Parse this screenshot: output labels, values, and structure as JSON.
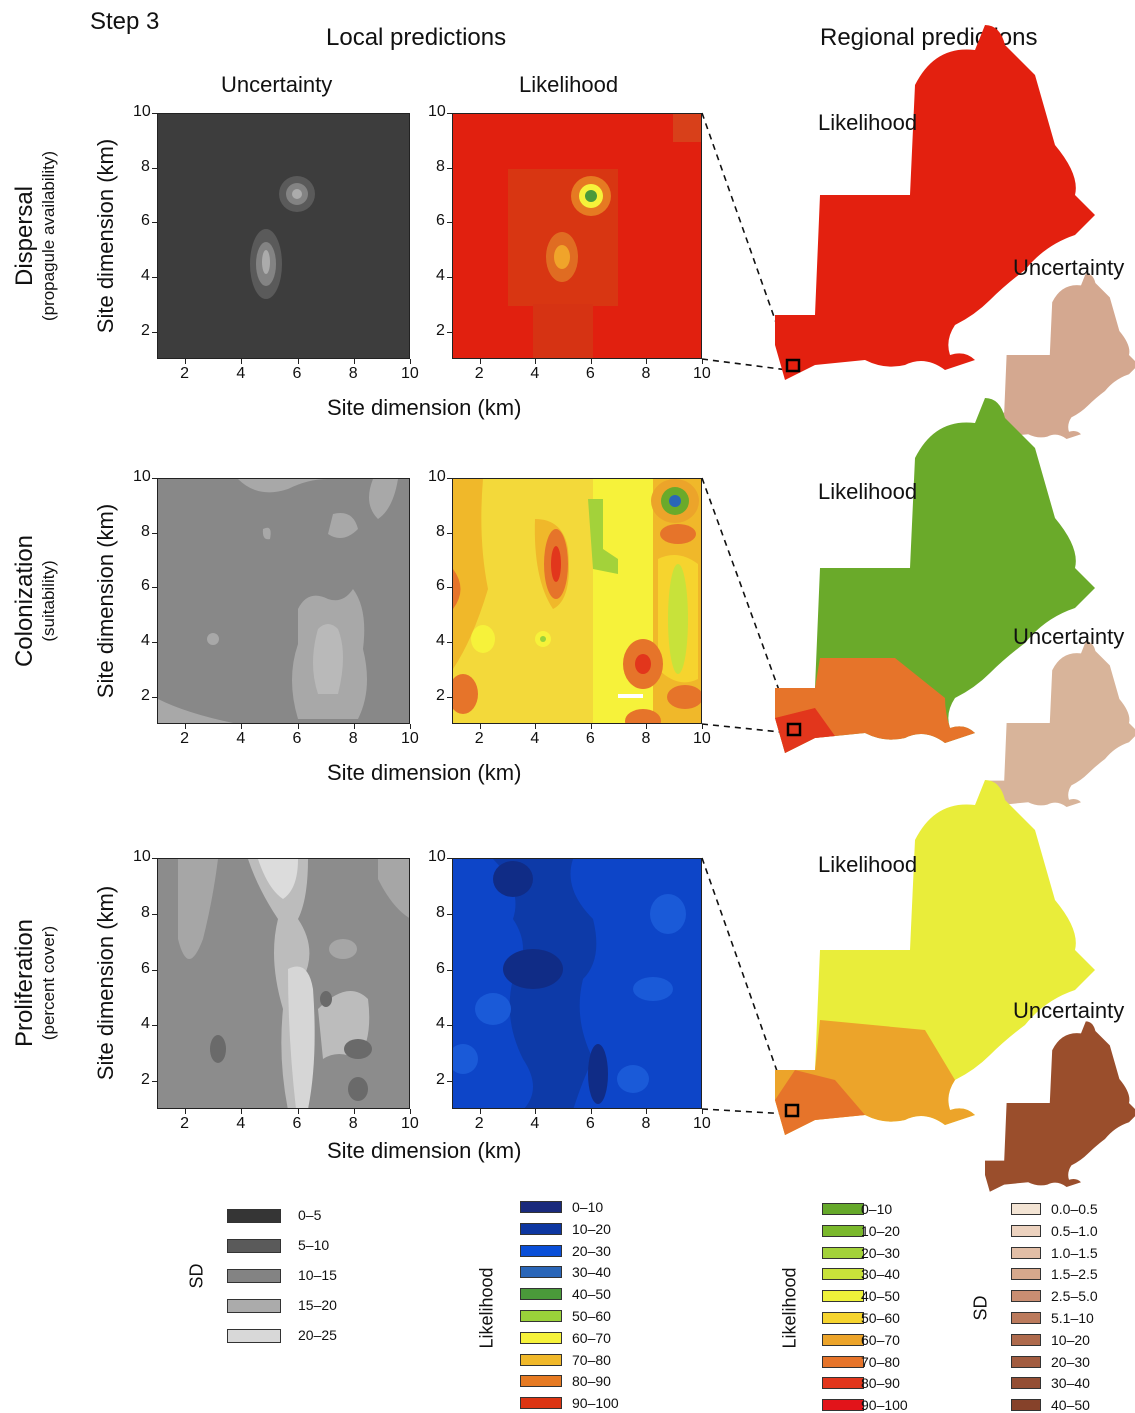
{
  "step": "Step 3",
  "headers": {
    "local": "Local predictions",
    "regional": "Regional predictions"
  },
  "columns": {
    "uncertainty": "Uncertainty",
    "likelihood": "Likelihood"
  },
  "rows": [
    {
      "name": "Dispersal",
      "sub": "(propagule availability)",
      "local_likelihood_color": "#e0200f",
      "map_likelihood_color": "#e3200f",
      "map_uncertainty_color": "#d4a890"
    },
    {
      "name": "Colonization",
      "sub": "(suitability)",
      "local_likelihood_color": "#f7e33a",
      "map_likelihood_color": "#6aaa2a",
      "map_uncertainty_color": "#d8b49a"
    },
    {
      "name": "Proliferation",
      "sub": "(percent cover)",
      "local_likelihood_color": "#1047c8",
      "map_likelihood_color": "#e9ed3a",
      "map_uncertainty_color": "#9a4e2c"
    }
  ],
  "axis": {
    "ylabel": "Site dimension (km)",
    "xlabel": "Site dimension (km)",
    "ticks": [
      "2",
      "4",
      "6",
      "8",
      "10"
    ],
    "yticks": [
      "2",
      "4",
      "6",
      "8",
      "10"
    ]
  },
  "map_labels": {
    "likelihood": "Likelihood",
    "uncertainty": "Uncertainty"
  },
  "legends": {
    "sd_local": {
      "title": "SD",
      "items": [
        {
          "label": "0–5",
          "color": "#353535"
        },
        {
          "label": "5–10",
          "color": "#5a5a5a"
        },
        {
          "label": "10–15",
          "color": "#838383"
        },
        {
          "label": "15–20",
          "color": "#ababab"
        },
        {
          "label": "20–25",
          "color": "#d8d8d8"
        }
      ]
    },
    "likelihood_local": {
      "title": "Likelihood",
      "items": [
        {
          "label": "0–10",
          "color": "#1a2a7c"
        },
        {
          "label": "10–20",
          "color": "#0d36a0"
        },
        {
          "label": "20–30",
          "color": "#0a4fd8"
        },
        {
          "label": "30–40",
          "color": "#2a66b8"
        },
        {
          "label": "40–50",
          "color": "#4a9a3a"
        },
        {
          "label": "50–60",
          "color": "#9ad23a"
        },
        {
          "label": "60–70",
          "color": "#f6f23a"
        },
        {
          "label": "70–80",
          "color": "#f0b82a"
        },
        {
          "label": "80–90",
          "color": "#e67a22"
        },
        {
          "label": "90–100",
          "color": "#dc3412"
        }
      ]
    },
    "likelihood_regional": {
      "title": "Likelihood",
      "items": [
        {
          "label": "0–10",
          "color": "#65a82a"
        },
        {
          "label": "10–20",
          "color": "#7ab82c"
        },
        {
          "label": "20–30",
          "color": "#a3d23a"
        },
        {
          "label": "30–40",
          "color": "#c8e23a"
        },
        {
          "label": "40–50",
          "color": "#eef23a"
        },
        {
          "label": "50–60",
          "color": "#f6d42e"
        },
        {
          "label": "60–70",
          "color": "#eca42a"
        },
        {
          "label": "70–80",
          "color": "#e6742a"
        },
        {
          "label": "80–90",
          "color": "#e2361c"
        },
        {
          "label": "90–100",
          "color": "#e2141a"
        }
      ]
    },
    "sd_regional": {
      "title": "SD",
      "items": [
        {
          "label": "0.0–0.5",
          "color": "#f3e4d4"
        },
        {
          "label": "0.5–1.0",
          "color": "#ecd2bf"
        },
        {
          "label": "1.0–1.5",
          "color": "#e2bea6"
        },
        {
          "label": "1.5–2.5",
          "color": "#d6a88c"
        },
        {
          "label": "2.5–5.0",
          "color": "#c98e72"
        },
        {
          "label": "5.1–10",
          "color": "#bb7a5c"
        },
        {
          "label": "10–20",
          "color": "#ae6a4c"
        },
        {
          "label": "20–30",
          "color": "#a25c40"
        },
        {
          "label": "30–40",
          "color": "#944e34"
        },
        {
          "label": "40–50",
          "color": "#86422a"
        }
      ]
    }
  },
  "chart_data": [
    {
      "type": "heatmap",
      "title": "",
      "panel": "Dispersal – Uncertainty (SD)",
      "xlim": [
        1,
        10
      ],
      "ylim": [
        1,
        10
      ],
      "xlabel": "Site dimension (km)",
      "ylabel": "Site dimension (km)"
    },
    {
      "type": "heatmap",
      "title": "",
      "panel": "Dispersal – Likelihood",
      "xlim": [
        1,
        10
      ],
      "ylim": [
        1,
        10
      ],
      "xlabel": "Site dimension (km)",
      "ylabel": ""
    },
    {
      "type": "heatmap",
      "title": "",
      "panel": "Colonization – Uncertainty (SD)",
      "xlim": [
        1,
        10
      ],
      "ylim": [
        1,
        10
      ],
      "xlabel": "Site dimension (km)",
      "ylabel": "Site dimension (km)"
    },
    {
      "type": "heatmap",
      "title": "",
      "panel": "Colonization – Likelihood",
      "xlim": [
        1,
        10
      ],
      "ylim": [
        1,
        10
      ],
      "xlabel": "Site dimension (km)",
      "ylabel": ""
    },
    {
      "type": "heatmap",
      "title": "",
      "panel": "Proliferation – Uncertainty (SD)",
      "xlim": [
        1,
        10
      ],
      "ylim": [
        1,
        10
      ],
      "xlabel": "Site dimension (km)",
      "ylabel": "Site dimension (km)"
    },
    {
      "type": "heatmap",
      "title": "",
      "panel": "Proliferation – Likelihood",
      "xlim": [
        1,
        10
      ],
      "ylim": [
        1,
        10
      ],
      "xlabel": "Site dimension (km)",
      "ylabel": ""
    }
  ]
}
